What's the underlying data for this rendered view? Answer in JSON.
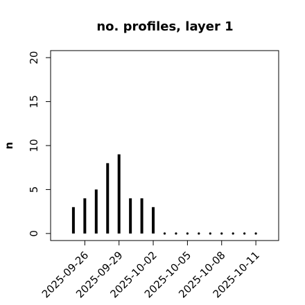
{
  "chart_data": {
    "type": "stem",
    "title": "no. profiles, layer 1",
    "y_label": "n",
    "x": [
      "2025-09-25",
      "2025-09-26",
      "2025-09-27",
      "2025-09-28",
      "2025-09-29",
      "2025-09-30",
      "2025-10-01",
      "2025-10-02",
      "2025-10-03",
      "2025-10-04",
      "2025-10-05",
      "2025-10-06",
      "2025-10-07",
      "2025-10-08",
      "2025-10-09",
      "2025-10-10",
      "2025-10-11"
    ],
    "values": [
      3,
      4,
      5,
      8,
      9,
      4,
      4,
      3,
      0,
      0,
      0,
      0,
      0,
      0,
      0,
      0,
      0
    ],
    "color": "#000000",
    "xlim": [
      "2025-09-23",
      "2025-10-13"
    ],
    "xticks": [
      "2025-09-26",
      "2025-09-29",
      "2025-10-02",
      "2025-10-05",
      "2025-10-08",
      "2025-10-11"
    ],
    "xtick_label_colors": [
      "#000000",
      "#000000",
      "#2e8b2e",
      "#000000",
      "#000000",
      "#000000"
    ],
    "ylim": [
      -0.8,
      20.8
    ],
    "yticks": [
      0,
      5,
      10,
      15,
      20
    ]
  }
}
